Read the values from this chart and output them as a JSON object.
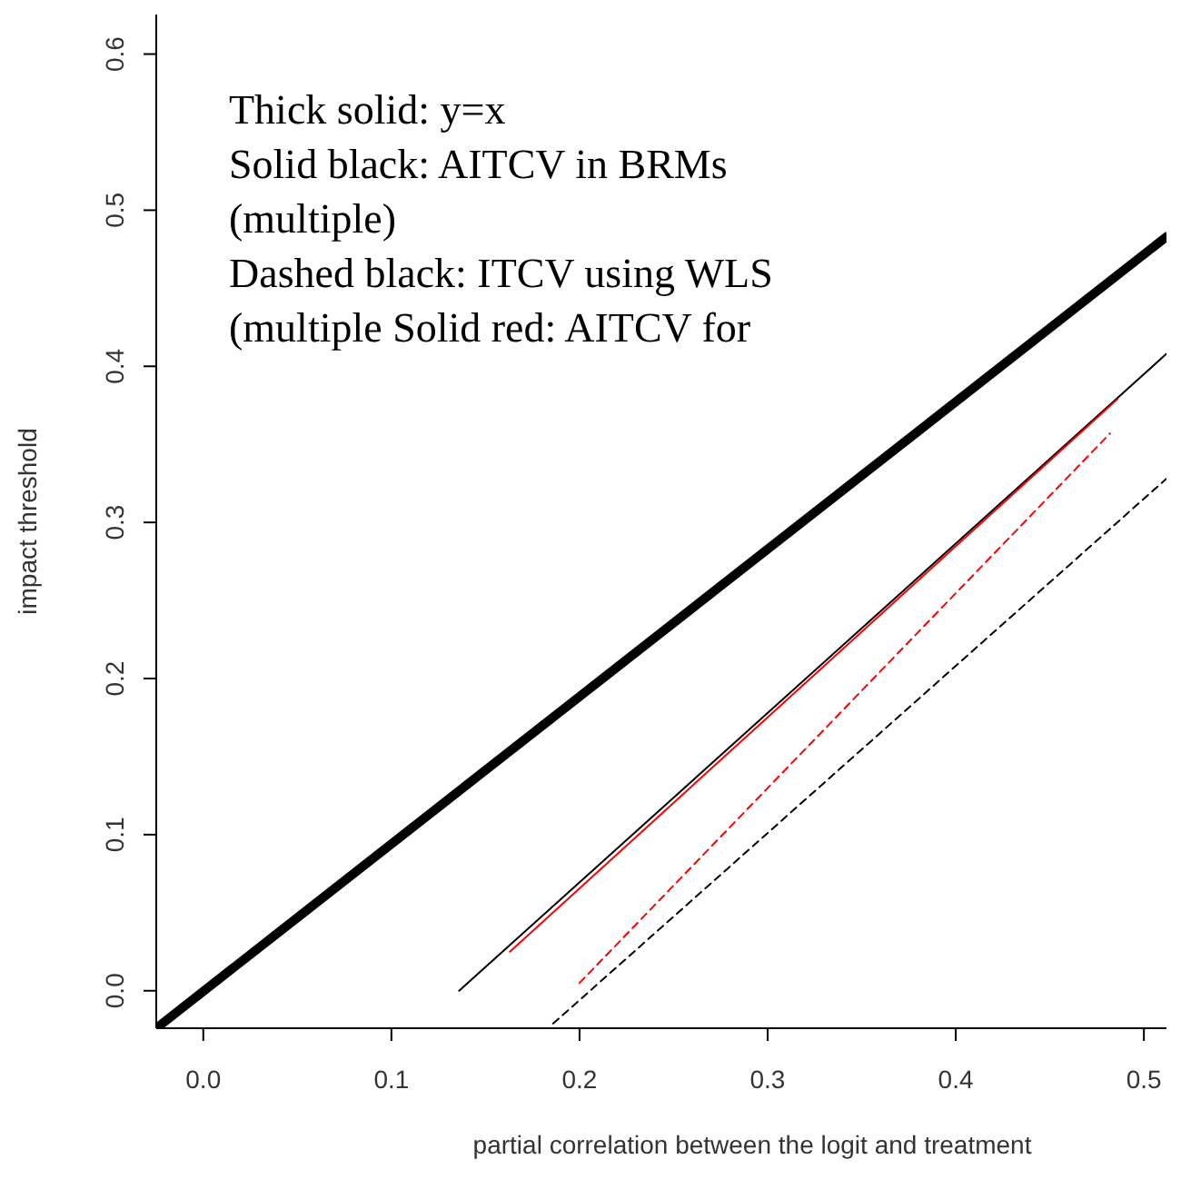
{
  "chart_data": {
    "type": "line",
    "xlabel": "partial correlation between the logit and treatment",
    "ylabel": "impact threshold",
    "xlim": [
      -0.025,
      0.512
    ],
    "ylim": [
      -0.024,
      0.623
    ],
    "xticks": [
      {
        "value": 0,
        "label": "0.0"
      },
      0.1,
      0.2,
      0.3,
      0.4,
      0.5
    ],
    "yticks": [
      {
        "value": 0,
        "label": "0.0"
      },
      0.1,
      0.2,
      0.3,
      0.4,
      0.5,
      0.6
    ],
    "grid": false,
    "annotations": [
      "Thick solid: y=x",
      "Solid black: AITCV in BRMs",
      "(multiple)",
      "Dashed black: ITCV using WLS",
      "(multiple Solid red: AITCV for"
    ],
    "series": [
      {
        "color": "#000000",
        "line_style": "solid",
        "x": [
          -0.025,
          0.512
        ],
        "values": [
          -0.024,
          0.483
        ]
      },
      {
        "color": "#000000",
        "line_style": "solid",
        "x": [
          0.136,
          0.512
        ],
        "values": [
          0.0,
          0.408
        ]
      },
      {
        "color": "#ff0000",
        "line_style": "solid",
        "x": [
          0.163,
          0.486
        ],
        "values": [
          0.025,
          0.379
        ]
      },
      {
        "color": "#ff0000",
        "line_style": "dashed",
        "x": [
          0.2,
          0.482
        ],
        "values": [
          0.005,
          0.357
        ]
      },
      {
        "color": "#000000",
        "line_style": "dashed",
        "x": [
          0.186,
          0.512
        ],
        "values": [
          -0.021,
          0.328
        ]
      }
    ]
  }
}
